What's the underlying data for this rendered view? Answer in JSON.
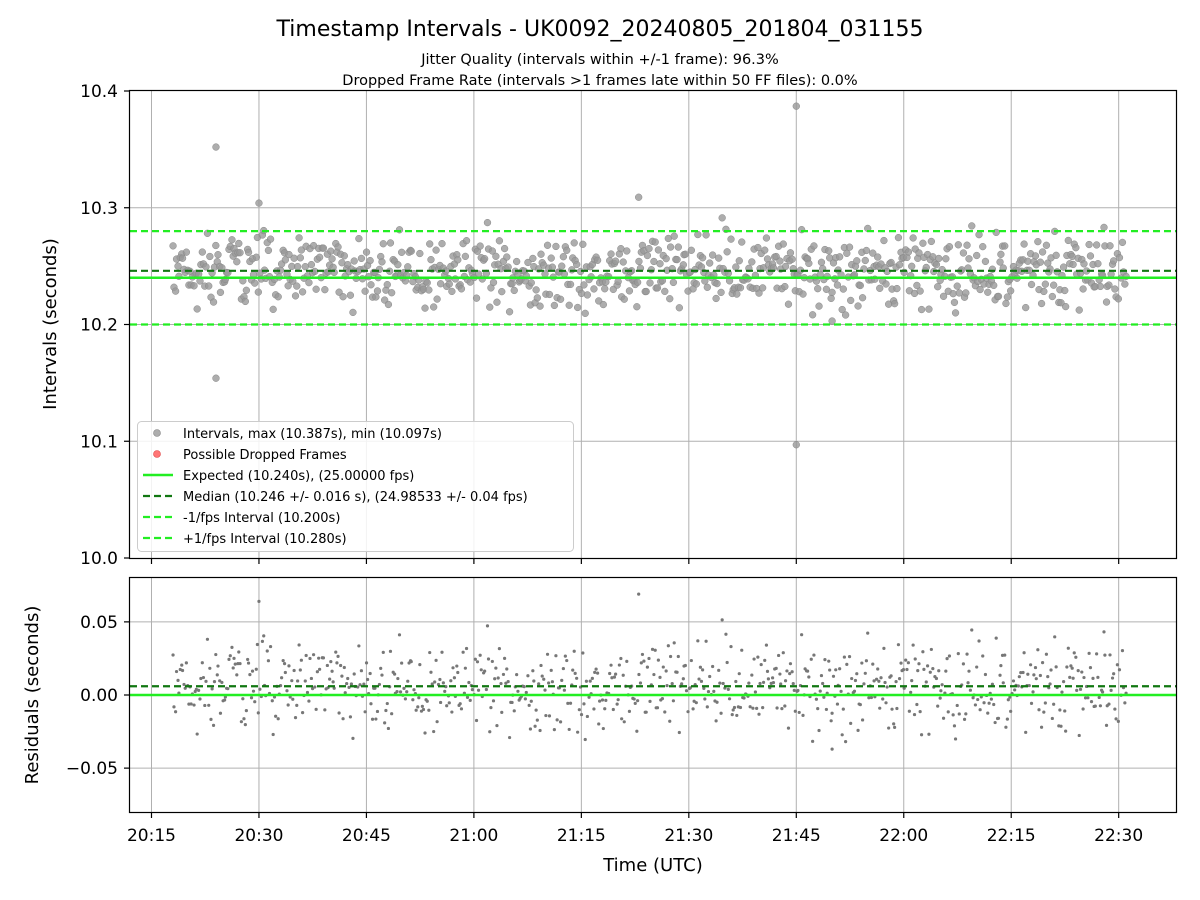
{
  "chart_data": {
    "type": "scatter",
    "title": "Timestamp Intervals - UK0092_20240805_201804_031155",
    "subtitle_lines": [
      "Jitter Quality (intervals within +/-1 frame): 96.3%",
      "Dropped Frame Rate (intervals >1 frames late within 50 FF files): 0.0%"
    ],
    "xlabel": "Time (UTC)",
    "x_range": [
      "20:12",
      "22:38"
    ],
    "x_ticks": [
      "20:15",
      "20:30",
      "20:45",
      "21:00",
      "21:15",
      "21:30",
      "21:45",
      "22:00",
      "22:15",
      "22:30"
    ],
    "x_start_time": "20:18",
    "x_end_time": "22:31",
    "upper": {
      "ylabel": "Intervals (seconds)",
      "ylim": [
        10.0,
        10.4
      ],
      "y_ticks": [
        "10.0",
        "10.1",
        "10.2",
        "10.3",
        "10.4"
      ],
      "grid": true,
      "expected": 10.24,
      "median": 10.246,
      "minus_interval": 10.2,
      "plus_interval": 10.28,
      "outliers": [
        {
          "time": "20:24",
          "value": 10.352
        },
        {
          "time": "20:24",
          "value": 10.154
        },
        {
          "time": "20:30",
          "value": 10.304
        },
        {
          "time": "21:23",
          "value": 10.309
        },
        {
          "time": "21:45",
          "value": 10.387
        },
        {
          "time": "21:45",
          "value": 10.097
        },
        {
          "time": "21:50",
          "value": 10.203
        }
      ],
      "legend": {
        "placement": "lower left",
        "items": [
          {
            "label": "Intervals, max (10.387s), min (10.097s)",
            "kind": "point",
            "color": "#999999"
          },
          {
            "label": "Possible Dropped Frames",
            "kind": "point",
            "color": "#ff6666"
          },
          {
            "label": "Expected (10.240s), (25.00000 fps)",
            "kind": "line",
            "color": "#22ee22"
          },
          {
            "label": "Median (10.246 +/- 0.016 s), (24.98533 +/- 0.04 fps)",
            "kind": "dash",
            "color": "#117711"
          },
          {
            "label": "-1/fps Interval (10.200s)",
            "kind": "dash",
            "color": "#22ee22"
          },
          {
            "label": "+1/fps Interval (10.280s)",
            "kind": "dash",
            "color": "#22ee22"
          }
        ]
      }
    },
    "lower": {
      "ylabel": "Residuals (seconds)",
      "ylim": [
        -0.08,
        0.08
      ],
      "y_ticks": [
        "0.05",
        "0.00",
        "−0.05"
      ],
      "grid": true,
      "expected": 0.0,
      "median": 0.006
    },
    "point_count": 780,
    "colors": {
      "points": "#999999",
      "points_edge": "#888888",
      "residual_points": "#777777",
      "expected": "#22ee22",
      "median": "#117711",
      "grid": "#b0b0b0"
    }
  }
}
